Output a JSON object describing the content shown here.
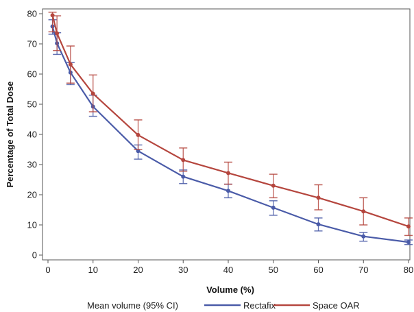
{
  "chart_data": {
    "type": "line",
    "xlabel": "Volume (%)",
    "ylabel": "Percentage of Total Dose",
    "xlim": [
      0,
      80
    ],
    "ylim": [
      0,
      80
    ],
    "xticks": [
      "0",
      "10",
      "20",
      "30",
      "40",
      "50",
      "60",
      "70",
      "80"
    ],
    "yticks": [
      "0",
      "10",
      "20",
      "30",
      "40",
      "50",
      "60",
      "70",
      "80"
    ],
    "grid": false,
    "legend_title": "Mean volume (95% CI)",
    "legend_position": "bottom",
    "x": [
      1,
      2,
      5,
      10,
      20,
      30,
      40,
      50,
      60,
      70,
      80
    ],
    "series": [
      {
        "name": "Rectafix",
        "color": "#4a5ba8",
        "values": [
          75.8,
          70.2,
          60.5,
          49.2,
          34.5,
          26.0,
          21.3,
          15.7,
          10.2,
          6.2,
          4.3
        ],
        "lower": [
          73.2,
          66.5,
          56.5,
          46.0,
          31.8,
          23.7,
          19.0,
          13.2,
          8.0,
          4.6,
          3.5
        ],
        "upper": [
          78.0,
          73.7,
          63.8,
          53.0,
          36.5,
          28.2,
          23.5,
          18.0,
          12.3,
          7.5,
          5.0
        ]
      },
      {
        "name": "Space OAR",
        "color": "#b5463e",
        "values": [
          79.5,
          73.5,
          63.2,
          53.5,
          39.8,
          31.5,
          27.2,
          23.0,
          19.0,
          14.5,
          9.5
        ],
        "lower": [
          74.0,
          67.8,
          57.0,
          47.5,
          35.0,
          27.8,
          23.5,
          19.0,
          15.0,
          10.0,
          6.5
        ],
        "upper": [
          80.5,
          79.3,
          69.3,
          59.7,
          44.8,
          35.5,
          30.8,
          26.8,
          23.3,
          19.0,
          12.3
        ]
      }
    ]
  }
}
